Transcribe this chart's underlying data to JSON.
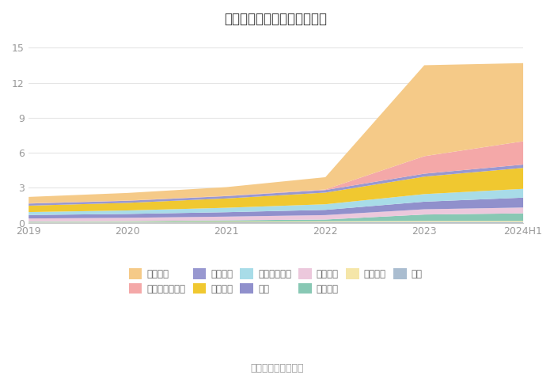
{
  "title": "历年主要资产堆积图（亿元）",
  "x_labels": [
    "2019",
    "2020",
    "2021",
    "2022",
    "2023",
    "2024H1"
  ],
  "x_positions": [
    0,
    1,
    2,
    3,
    4,
    5
  ],
  "series_bottom_to_top": [
    {
      "name": "其它",
      "color": "#AABDD0",
      "values": [
        0.05,
        0.06,
        0.07,
        0.08,
        0.1,
        0.1
      ]
    },
    {
      "name": "无形资产",
      "color": "#F5E6A8",
      "values": [
        0.05,
        0.06,
        0.07,
        0.08,
        0.09,
        0.09
      ]
    },
    {
      "name": "在建工程",
      "color": "#88C8B4",
      "values": [
        0.05,
        0.06,
        0.1,
        0.15,
        0.55,
        0.65
      ]
    },
    {
      "name": "固定资产",
      "color": "#ECC8DC",
      "values": [
        0.25,
        0.28,
        0.32,
        0.38,
        0.45,
        0.5
      ]
    },
    {
      "name": "存货",
      "color": "#9090CC",
      "values": [
        0.3,
        0.33,
        0.38,
        0.45,
        0.65,
        0.85
      ]
    },
    {
      "name": "应收款项融资",
      "color": "#A8DCE8",
      "values": [
        0.25,
        0.3,
        0.38,
        0.48,
        0.65,
        0.75
      ]
    },
    {
      "name": "应收账款",
      "color": "#F0C830",
      "values": [
        0.55,
        0.65,
        0.8,
        1.0,
        1.5,
        1.8
      ]
    },
    {
      "name": "应收票据",
      "color": "#9898D0",
      "values": [
        0.18,
        0.18,
        0.2,
        0.22,
        0.25,
        0.28
      ]
    },
    {
      "name": "交易性金融资产",
      "color": "#F4A8A8",
      "values": [
        0.02,
        0.02,
        0.02,
        0.05,
        1.5,
        2.0
      ]
    },
    {
      "name": "货币资金",
      "color": "#F5CA88",
      "values": [
        0.55,
        0.65,
        0.75,
        1.05,
        7.8,
        6.7
      ]
    }
  ],
  "legend_order": [
    "货币资金",
    "交易性金融资产",
    "应收票据",
    "应收账款",
    "应收款项融资",
    "存货",
    "固定资产",
    "在建工程",
    "无形资产",
    "其它"
  ],
  "ylim": [
    0,
    16
  ],
  "yticks": [
    0,
    3,
    6,
    9,
    12,
    15
  ],
  "source_text": "数据来源：恒生聚源",
  "background_color": "#ffffff",
  "grid_color": "#e5e5e5"
}
